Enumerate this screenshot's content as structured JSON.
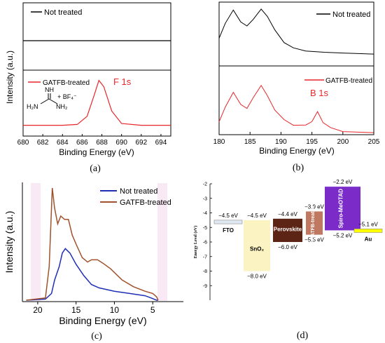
{
  "chart_data": [
    {
      "panel": "(a)",
      "type": "line",
      "xlabel": "Binding Energy (eV)",
      "ylabel": "Intensity (a.u.)",
      "xlim": [
        680,
        695
      ],
      "xticks": [
        "680",
        "682",
        "684",
        "686",
        "688",
        "690",
        "692",
        "694"
      ],
      "subpanels": [
        {
          "legend": "Not treated",
          "color": "#000000",
          "x": [
            680,
            684,
            688,
            692,
            695
          ],
          "y": [
            0.5,
            0.5,
            0.5,
            0.5,
            0.5
          ]
        },
        {
          "legend": "GATFB-treated",
          "color": "#e8262a",
          "peak_label": "F 1s",
          "molecule_formula": "BF4-",
          "x": [
            680,
            684,
            685.5,
            686.5,
            687.2,
            687.7,
            688.2,
            689,
            690,
            692,
            695
          ],
          "y": [
            0.12,
            0.12,
            0.13,
            0.22,
            0.45,
            0.62,
            0.55,
            0.28,
            0.14,
            0.12,
            0.12
          ]
        }
      ]
    },
    {
      "panel": "(b)",
      "type": "line",
      "xlabel": "Binding Energy (eV)",
      "ylabel": "",
      "xlim": [
        180,
        205
      ],
      "xticks": [
        "180",
        "185",
        "190",
        "195",
        "200",
        "205"
      ],
      "subpanels": [
        {
          "legend": "Not treated",
          "color": "#000000",
          "x": [
            180,
            181,
            182.3,
            183.5,
            184.5,
            185.5,
            186.8,
            187.8,
            189,
            190.5,
            192,
            194,
            197,
            200,
            205
          ],
          "y": [
            0.45,
            0.7,
            0.92,
            0.72,
            0.66,
            0.78,
            0.95,
            0.82,
            0.6,
            0.4,
            0.3,
            0.25,
            0.22,
            0.2,
            0.19
          ]
        },
        {
          "legend": "GATFB-treated",
          "color": "#e8262a",
          "peak_label": "B 1s",
          "x": [
            180,
            181,
            182.3,
            183.5,
            184.5,
            185.5,
            186.8,
            187.8,
            189,
            190.5,
            192,
            194,
            195,
            195.9,
            196.8,
            198,
            200,
            205
          ],
          "y": [
            0.2,
            0.45,
            0.68,
            0.48,
            0.42,
            0.6,
            0.78,
            0.62,
            0.38,
            0.22,
            0.14,
            0.14,
            0.2,
            0.35,
            0.18,
            0.1,
            0.06,
            0.05
          ]
        }
      ]
    },
    {
      "panel": "(c)",
      "type": "line",
      "xlabel": "Binding Energy (eV)",
      "ylabel": "Intensity (a.u.)",
      "xlim": [
        22,
        1
      ],
      "xticks": [
        "20",
        "15",
        "10",
        "5"
      ],
      "series": [
        {
          "name": "Not treated",
          "color": "#1f2fb5",
          "x": [
            21.5,
            19,
            18.2,
            17.8,
            17.2,
            16.8,
            16.4,
            15.8,
            15,
            14,
            13,
            12,
            10,
            8,
            6,
            5.2,
            4.5,
            4.3
          ],
          "y": [
            0,
            0.01,
            0.06,
            0.18,
            0.3,
            0.42,
            0.46,
            0.42,
            0.32,
            0.22,
            0.14,
            0.11,
            0.08,
            0.06,
            0.04,
            0.02,
            0.0,
            0
          ]
        },
        {
          "name": "GATFB-treated",
          "color": "#a0522d",
          "x": [
            21.5,
            19,
            18.5,
            18.1,
            17.8,
            17.4,
            17,
            16.5,
            16,
            15.5,
            15,
            14.2,
            13.5,
            13,
            12.2,
            11.5,
            10.5,
            9,
            7.5,
            6,
            5,
            4.5,
            4.3
          ],
          "y": [
            0,
            0.02,
            0.3,
            1.0,
            0.82,
            0.68,
            0.75,
            0.72,
            0.72,
            0.58,
            0.5,
            0.38,
            0.34,
            0.36,
            0.36,
            0.33,
            0.28,
            0.18,
            0.12,
            0.08,
            0.06,
            0.03,
            0
          ]
        }
      ]
    },
    {
      "panel": "(d)",
      "type": "diagram",
      "ylabel": "Energy Level (eV)",
      "yticks": [
        "-2",
        "-3",
        "-4",
        "-5",
        "-6",
        "-7",
        "-8",
        "-9"
      ],
      "ylim": [
        -10,
        -2
      ],
      "layers": [
        {
          "name": "FTO",
          "top_label": "−4.5 eV",
          "top": -4.5,
          "bottom": -4.75,
          "color": "#dfe8f2"
        },
        {
          "name": "SnO₂",
          "top_label": "−4.5 eV",
          "bottom_label": "−8.0 eV",
          "top": -4.5,
          "bottom": -8.0,
          "color": "#fbf3c2"
        },
        {
          "name": "Perovskite",
          "top_label": "−4.4 eV",
          "bottom_label": "−6.0 eV",
          "top": -4.4,
          "bottom": -6.0,
          "color": "#5c2415"
        },
        {
          "name": "GATFB-treated",
          "top_label": "−3.9 eV",
          "bottom_label": "−5.5 eV",
          "top": -3.9,
          "bottom": -5.5,
          "color": "#c07860"
        },
        {
          "name": "Spiro-MeOTAD",
          "top_label": "−2.2 eV",
          "bottom_label": "−5.2 eV",
          "top": -2.2,
          "bottom": -5.2,
          "color": "#7a2bc8"
        },
        {
          "name": "Au",
          "top_label": "−5.1 eV",
          "top": -5.1,
          "bottom": -5.35,
          "color": "#ffff00"
        }
      ]
    }
  ]
}
